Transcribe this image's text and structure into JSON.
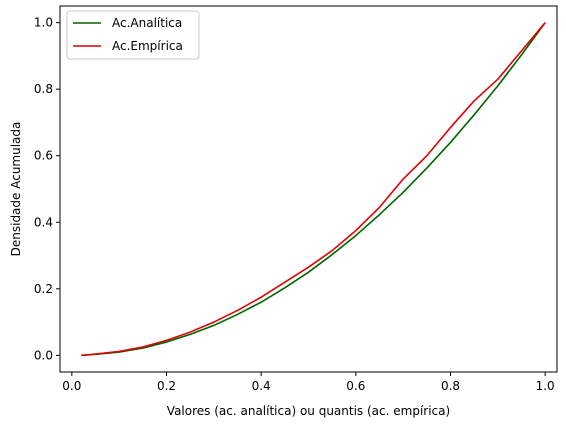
{
  "chart_data": {
    "type": "line",
    "title": "",
    "xlabel": "Valores (ac. analítica) ou quantis (ac. empírica)",
    "ylabel": "Densidade Acumulada",
    "xlim": [
      -0.025,
      1.025
    ],
    "ylim": [
      -0.05,
      1.05
    ],
    "xticks": [
      0.0,
      0.2,
      0.4,
      0.6,
      0.8,
      1.0
    ],
    "xtick_labels": [
      "0.0",
      "0.2",
      "0.4",
      "0.6",
      "0.8",
      "1.0"
    ],
    "yticks": [
      0.0,
      0.2,
      0.4,
      0.6,
      0.8,
      1.0
    ],
    "ytick_labels": [
      "0.0",
      "0.2",
      "0.4",
      "0.6",
      "0.8",
      "1.0"
    ],
    "grid": false,
    "legend_position": "top-left",
    "series": [
      {
        "name": "Ac.Analítica",
        "color": "#006400",
        "x": [
          0.02,
          0.05,
          0.1,
          0.15,
          0.2,
          0.25,
          0.3,
          0.35,
          0.4,
          0.45,
          0.5,
          0.55,
          0.6,
          0.65,
          0.7,
          0.75,
          0.8,
          0.85,
          0.9,
          0.95,
          1.0
        ],
        "y": [
          0.0,
          0.003,
          0.01,
          0.022,
          0.04,
          0.063,
          0.09,
          0.123,
          0.16,
          0.203,
          0.25,
          0.303,
          0.36,
          0.423,
          0.49,
          0.563,
          0.64,
          0.723,
          0.81,
          0.903,
          1.0
        ]
      },
      {
        "name": "Ac.Empírica",
        "color": "#e00000",
        "x": [
          0.02,
          0.05,
          0.1,
          0.15,
          0.2,
          0.25,
          0.3,
          0.35,
          0.4,
          0.45,
          0.5,
          0.55,
          0.6,
          0.65,
          0.7,
          0.75,
          0.8,
          0.85,
          0.9,
          0.95,
          1.0
        ],
        "y": [
          0.0,
          0.004,
          0.012,
          0.025,
          0.045,
          0.07,
          0.1,
          0.135,
          0.175,
          0.22,
          0.265,
          0.315,
          0.375,
          0.445,
          0.53,
          0.6,
          0.685,
          0.765,
          0.83,
          0.915,
          1.0
        ]
      }
    ]
  }
}
